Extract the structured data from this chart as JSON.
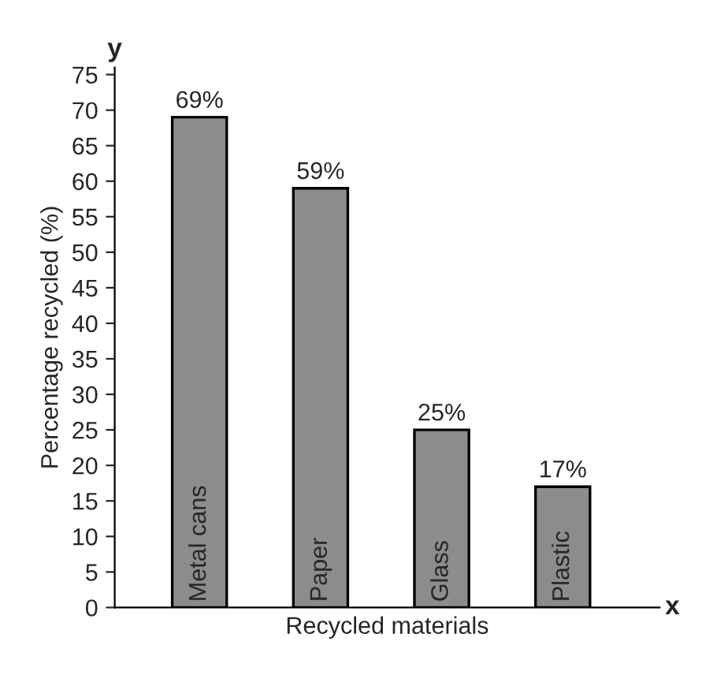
{
  "chart_data": {
    "type": "bar",
    "xlabel": "Recycled materials",
    "ylabel": "Percentage recycled (%)",
    "categories": [
      "Metal cans",
      "Paper",
      "Glass",
      "Plastic"
    ],
    "values": [
      69,
      59,
      25,
      17
    ],
    "value_labels": [
      "69%",
      "59%",
      "25%",
      "17%"
    ],
    "color": "#8c8c8c",
    "ylim": [
      0,
      76
    ],
    "yticks": [
      0,
      5,
      10,
      15,
      20,
      25,
      30,
      35,
      40,
      45,
      50,
      55,
      60,
      65,
      70,
      75
    ],
    "annotations": [
      "y",
      "x"
    ],
    "grid": false
  }
}
